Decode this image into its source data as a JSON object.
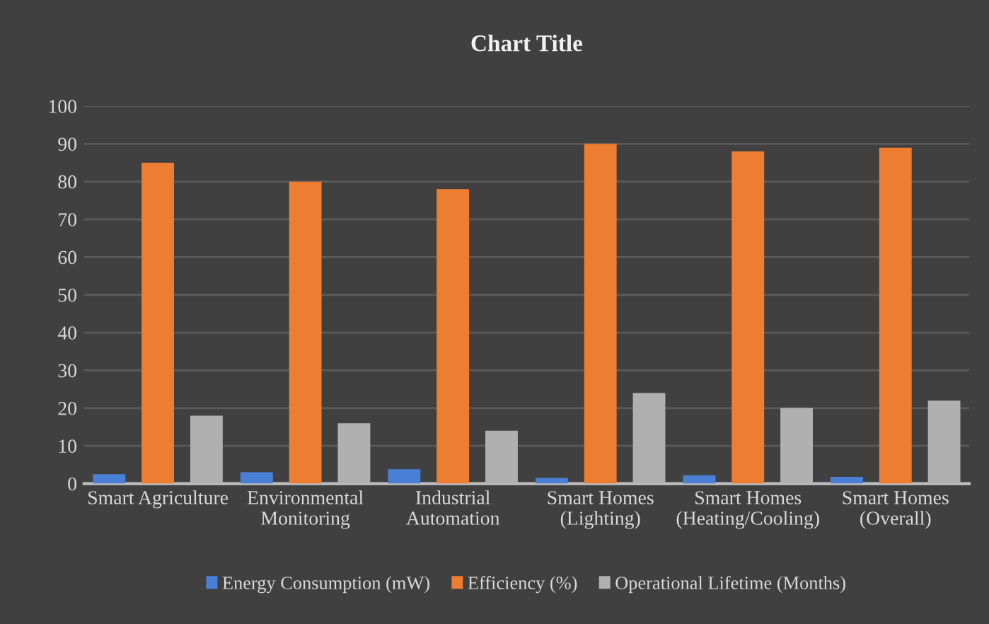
{
  "chart_data": {
    "type": "bar",
    "title": "Chart Title",
    "categories": [
      "Smart Agriculture",
      "Environmental\nMonitoring",
      "Industrial\nAutomation",
      "Smart Homes\n(Lighting)",
      "Smart Homes\n(Heating/Cooling)",
      "Smart Homes\n(Overall)"
    ],
    "series": [
      {
        "name": "Energy Consumption (mW)",
        "color": "#4a7fd6",
        "values": [
          2.5,
          3,
          3.8,
          1.5,
          2.2,
          1.8
        ]
      },
      {
        "name": "Efficiency (%)",
        "color": "#ed7d31",
        "values": [
          85,
          80,
          78,
          90,
          88,
          89
        ]
      },
      {
        "name": "Operational Lifetime (Months)",
        "color": "#b0b0b0",
        "values": [
          18,
          16,
          14,
          24,
          20,
          22
        ]
      }
    ],
    "ylim": [
      0,
      100
    ],
    "yticks": [
      0,
      10,
      20,
      30,
      40,
      50,
      60,
      70,
      80,
      90,
      100
    ],
    "grid": "y",
    "legend": "bottom"
  }
}
